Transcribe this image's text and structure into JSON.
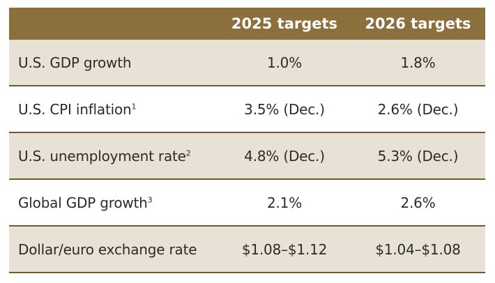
{
  "header": {
    "col_2025": "2025 targets",
    "col_2026": "2026 targets"
  },
  "rows": [
    {
      "label": "U.S. GDP growth",
      "note": "",
      "v2025": "1.0%",
      "v2026": "1.8%"
    },
    {
      "label": "U.S. CPI inflation",
      "note": "1",
      "v2025": "3.5% (Dec.)",
      "v2026": "2.6% (Dec.)"
    },
    {
      "label": "U.S. unemployment rate",
      "note": "2",
      "v2025": "4.8% (Dec.)",
      "v2026": "5.3% (Dec.)"
    },
    {
      "label": "Global GDP growth",
      "note": "3",
      "v2025": "2.1%",
      "v2026": "2.6%"
    },
    {
      "label": "Dollar/euro exchange rate",
      "note": "",
      "v2025": "$1.08–$1.12",
      "v2026": "$1.04–$1.08"
    }
  ],
  "colors": {
    "header_bg": "#8b6f3c",
    "shaded_row": "#e8e2d6",
    "rule": "#6f5a2e"
  }
}
